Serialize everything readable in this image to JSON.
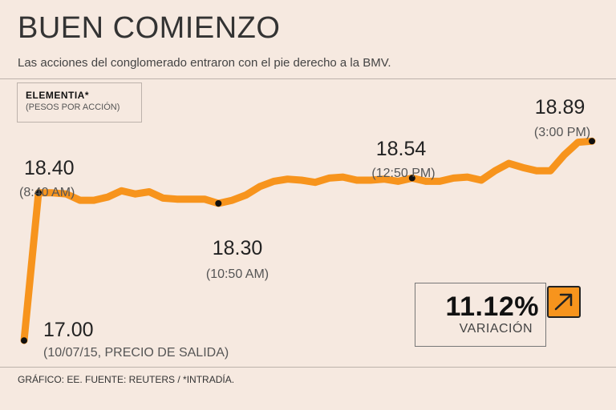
{
  "header": {
    "title": "BUEN COMIENZO",
    "subtitle": "Las acciones del conglomerado entraron con el pie derecho a la BMV."
  },
  "legend": {
    "name": "ELEMENTIA*",
    "unit": "(PESOS POR ACCIÓN)"
  },
  "variation": {
    "value": "11.12%",
    "label": "VARIACIÓN",
    "icon": "arrow-up-right-icon"
  },
  "footer": {
    "source": "GRÁFICO: EE. FUENTE: REUTERS / *INTRADÍA."
  },
  "colors": {
    "line": "#f7941d",
    "background": "#f6e9e0",
    "marker": "#111111"
  },
  "chart_data": {
    "type": "line",
    "series": [
      {
        "values": [
          17.0,
          18.4,
          18.4,
          18.39,
          18.33,
          18.33,
          18.36,
          18.42,
          18.39,
          18.41,
          18.35,
          18.34,
          18.34,
          18.34,
          18.3,
          18.33,
          18.38,
          18.46,
          18.51,
          18.53,
          18.52,
          18.5,
          18.54,
          18.55,
          18.52,
          18.52,
          18.53,
          18.51,
          18.54,
          18.51,
          18.51,
          18.54,
          18.55,
          18.52,
          18.61,
          18.68,
          18.64,
          18.61,
          18.61,
          18.76,
          18.88,
          18.89
        ]
      }
    ],
    "annotations": [
      {
        "index": 0,
        "value": "17.00",
        "label": "(10/07/15, PRECIO DE SALIDA)"
      },
      {
        "index": 1,
        "value": "18.40",
        "label": "(8:40 AM)"
      },
      {
        "index": 14,
        "value": "18.30",
        "label": "(10:50 AM)"
      },
      {
        "index": 28,
        "value": "18.54",
        "label": "(12:50 PM)"
      },
      {
        "index": 41,
        "value": "18.89",
        "label": "(3:00 PM)"
      }
    ],
    "ylim": [
      16.88,
      19.5
    ],
    "grid": false,
    "legend_position": "top-left"
  }
}
